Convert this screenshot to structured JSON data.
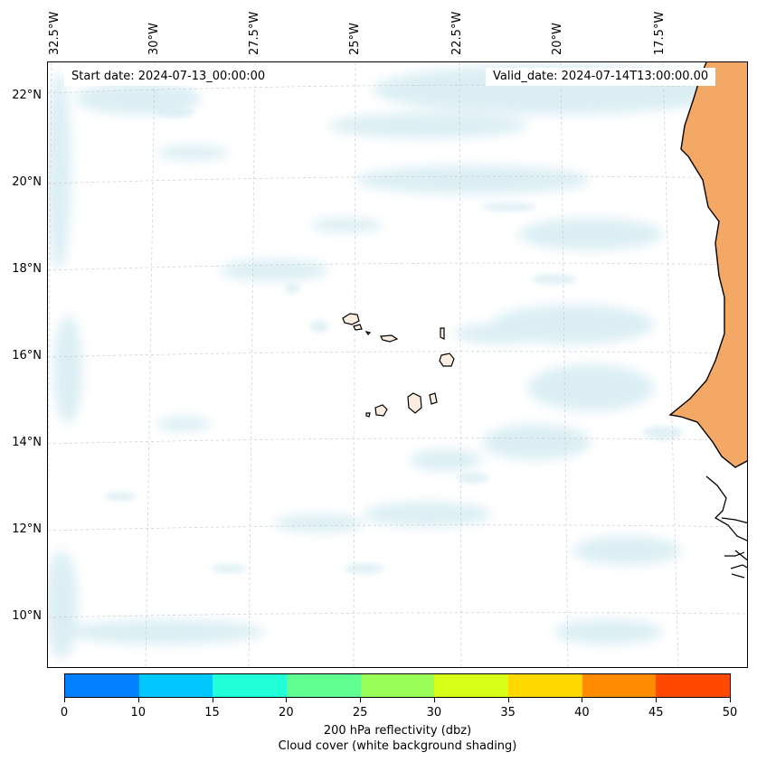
{
  "header": {
    "start_date": "Start date: 2024-07-13_00:00:00",
    "valid_date": "Valid_date: 2024-07-14T13:00:00.00"
  },
  "longitude_labels": [
    "32.5°W",
    "30°W",
    "27.5°W",
    "25°W",
    "22.5°W",
    "20°W",
    "17.5°W"
  ],
  "latitude_labels": [
    "22°N",
    "20°N",
    "18°N",
    "16°N",
    "14°N",
    "12°N",
    "10°N"
  ],
  "colorbar": {
    "tick_labels": [
      "0",
      "10",
      "15",
      "20",
      "25",
      "30",
      "35",
      "40",
      "45",
      "50"
    ],
    "colors": [
      "#0080ff",
      "#00c8ff",
      "#20ffd8",
      "#60ff90",
      "#98ff58",
      "#d8ff18",
      "#ffd800",
      "#ff8c00",
      "#ff4800"
    ],
    "title_line1": "200 hPa reflectivity (dbz)",
    "title_line2": "Cloud cover (white background shading)"
  },
  "map_colors": {
    "cloud": "#d6ecf2",
    "land": "#f4a866",
    "coast": "#000000",
    "grid": "#cccccc"
  }
}
